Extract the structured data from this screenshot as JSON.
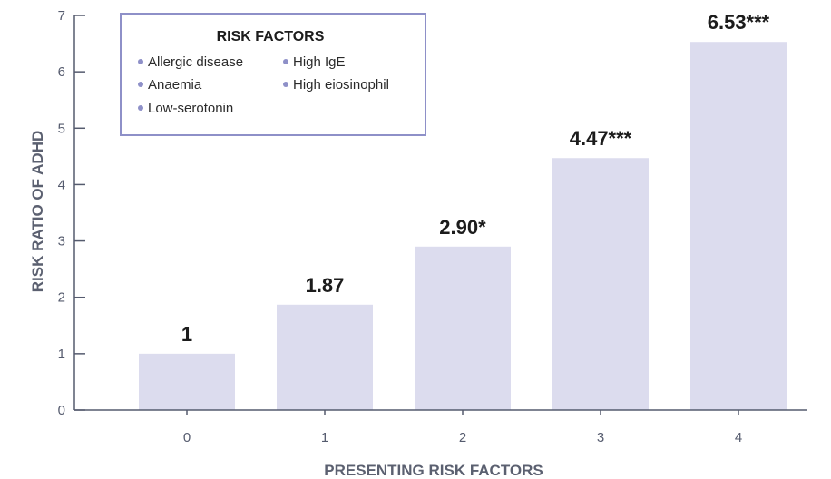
{
  "chart_data": {
    "type": "bar",
    "title": "",
    "xlabel": "PRESENTING RISK FACTORS",
    "ylabel": "RISK RATIO OF ADHD",
    "categories": [
      "0",
      "1",
      "2",
      "3",
      "4"
    ],
    "values": [
      1,
      1.87,
      2.9,
      4.47,
      6.53
    ],
    "data_labels": [
      "1",
      "1.87",
      "2.90*",
      "4.47***",
      "6.53***"
    ],
    "ylim": [
      0,
      7
    ],
    "yticks": [
      0,
      1,
      2,
      3,
      4,
      5,
      6,
      7
    ],
    "grid": false,
    "legend": {
      "title": "RISK FACTORS",
      "placement": "top-left",
      "items": [
        "Allergic disease",
        "High IgE",
        "Anaemia",
        "High eiosinophil",
        "Low-serotonin"
      ]
    }
  },
  "colors": {
    "bar": "#dcdcee",
    "axis": "#555b6e",
    "legend_border": "#8e90c8",
    "legend_bullet": "#8e90c8"
  }
}
